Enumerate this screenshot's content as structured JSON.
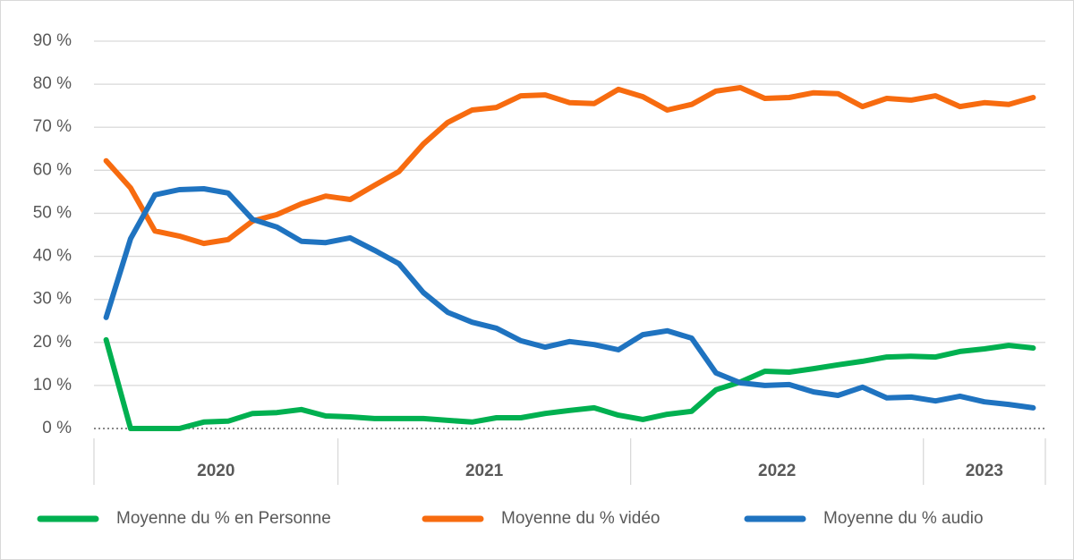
{
  "chart_data": {
    "type": "line",
    "categories": [
      null,
      null,
      null,
      null,
      null,
      null,
      null,
      null,
      null,
      null,
      null,
      null,
      null,
      null,
      null,
      null,
      null,
      null,
      null,
      null,
      null,
      null,
      null,
      null,
      null,
      null,
      null,
      null,
      null,
      null,
      null,
      null,
      null,
      null,
      null,
      null,
      null,
      null,
      null
    ],
    "year_groups": [
      {
        "label": "2020",
        "size": 10
      },
      {
        "label": "2021",
        "size": 12
      },
      {
        "label": "2022",
        "size": 12
      },
      {
        "label": "2023",
        "size": 5
      }
    ],
    "series": [
      {
        "name": "Moyenne du % en Personne",
        "color": "#00b050",
        "values": [
          20.6,
          0,
          0,
          0,
          1.5,
          1.7,
          3.5,
          3.7,
          4.4,
          2.9,
          2.7,
          2.3,
          2.3,
          2.3,
          1.9,
          1.5,
          2.5,
          2.5,
          3.5,
          4.2,
          4.8,
          3.1,
          2.1,
          3.3,
          4.0,
          9.0,
          10.8,
          13.3,
          13.1,
          13.9,
          14.8,
          15.6,
          16.6,
          16.8,
          16.6,
          17.9,
          18.5,
          19.3,
          18.7
        ]
      },
      {
        "name": "Moyenne du % vidéo",
        "color": "#f76b0f",
        "values": [
          62.2,
          55.9,
          45.9,
          44.7,
          43.0,
          43.9,
          48.2,
          49.7,
          52.2,
          54.0,
          53.2,
          56.5,
          59.7,
          66.1,
          71.1,
          74.0,
          74.6,
          77.3,
          77.5,
          75.7,
          75.5,
          78.8,
          77.1,
          74.0,
          75.3,
          78.4,
          79.2,
          76.7,
          76.9,
          78.0,
          77.8,
          74.8,
          76.7,
          76.3,
          77.3,
          74.8,
          75.7,
          75.3,
          76.9
        ]
      },
      {
        "name": "Moyenne du % audio",
        "color": "#1f73c0",
        "values": [
          25.8,
          44.1,
          54.3,
          55.5,
          55.7,
          54.7,
          48.6,
          46.8,
          43.5,
          43.2,
          44.3,
          41.4,
          38.3,
          31.6,
          27.0,
          24.7,
          23.3,
          20.4,
          18.9,
          20.2,
          19.5,
          18.3,
          21.8,
          22.7,
          21.0,
          12.9,
          10.6,
          10.0,
          10.2,
          8.5,
          7.7,
          9.6,
          7.1,
          7.3,
          6.4,
          7.5,
          6.2,
          5.6,
          4.8
        ]
      }
    ],
    "ylim": [
      0,
      90
    ],
    "yticks": [
      {
        "value": 0,
        "label": "0 %"
      },
      {
        "value": 10,
        "label": "10 %"
      },
      {
        "value": 20,
        "label": "20 %"
      },
      {
        "value": 30,
        "label": "30 %"
      },
      {
        "value": 40,
        "label": "40 %"
      },
      {
        "value": 50,
        "label": "50 %"
      },
      {
        "value": 60,
        "label": "60 %"
      },
      {
        "value": 70,
        "label": "70 %"
      },
      {
        "value": 80,
        "label": "80 %"
      },
      {
        "value": 90,
        "label": "90 %"
      }
    ],
    "grid": true
  }
}
